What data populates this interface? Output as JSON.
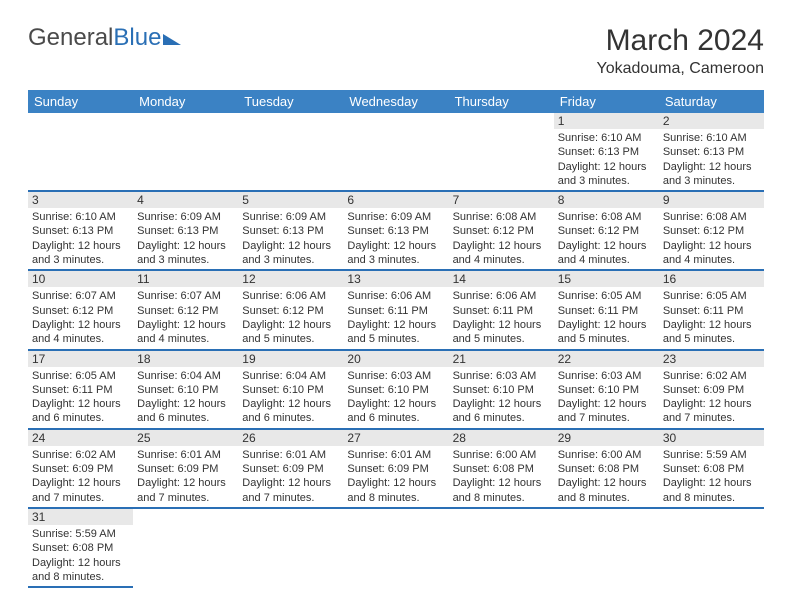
{
  "brand": {
    "part1": "General",
    "part2": "Blue"
  },
  "title": "March 2024",
  "subtitle": "Yokadouma, Cameroon",
  "colors": {
    "header_bg": "#3b82c4",
    "header_text": "#ffffff",
    "border": "#2a6fb5",
    "daynum_bg": "#e8e8e8",
    "text": "#333333",
    "logo_gray": "#4a4a4a",
    "logo_blue": "#2a6fb5"
  },
  "weekdays": [
    "Sunday",
    "Monday",
    "Tuesday",
    "Wednesday",
    "Thursday",
    "Friday",
    "Saturday"
  ],
  "weeks": [
    [
      {
        "n": "",
        "t": ""
      },
      {
        "n": "",
        "t": ""
      },
      {
        "n": "",
        "t": ""
      },
      {
        "n": "",
        "t": ""
      },
      {
        "n": "",
        "t": ""
      },
      {
        "n": "1",
        "t": "Sunrise: 6:10 AM\nSunset: 6:13 PM\nDaylight: 12 hours and 3 minutes."
      },
      {
        "n": "2",
        "t": "Sunrise: 6:10 AM\nSunset: 6:13 PM\nDaylight: 12 hours and 3 minutes."
      }
    ],
    [
      {
        "n": "3",
        "t": "Sunrise: 6:10 AM\nSunset: 6:13 PM\nDaylight: 12 hours and 3 minutes."
      },
      {
        "n": "4",
        "t": "Sunrise: 6:09 AM\nSunset: 6:13 PM\nDaylight: 12 hours and 3 minutes."
      },
      {
        "n": "5",
        "t": "Sunrise: 6:09 AM\nSunset: 6:13 PM\nDaylight: 12 hours and 3 minutes."
      },
      {
        "n": "6",
        "t": "Sunrise: 6:09 AM\nSunset: 6:13 PM\nDaylight: 12 hours and 3 minutes."
      },
      {
        "n": "7",
        "t": "Sunrise: 6:08 AM\nSunset: 6:12 PM\nDaylight: 12 hours and 4 minutes."
      },
      {
        "n": "8",
        "t": "Sunrise: 6:08 AM\nSunset: 6:12 PM\nDaylight: 12 hours and 4 minutes."
      },
      {
        "n": "9",
        "t": "Sunrise: 6:08 AM\nSunset: 6:12 PM\nDaylight: 12 hours and 4 minutes."
      }
    ],
    [
      {
        "n": "10",
        "t": "Sunrise: 6:07 AM\nSunset: 6:12 PM\nDaylight: 12 hours and 4 minutes."
      },
      {
        "n": "11",
        "t": "Sunrise: 6:07 AM\nSunset: 6:12 PM\nDaylight: 12 hours and 4 minutes."
      },
      {
        "n": "12",
        "t": "Sunrise: 6:06 AM\nSunset: 6:12 PM\nDaylight: 12 hours and 5 minutes."
      },
      {
        "n": "13",
        "t": "Sunrise: 6:06 AM\nSunset: 6:11 PM\nDaylight: 12 hours and 5 minutes."
      },
      {
        "n": "14",
        "t": "Sunrise: 6:06 AM\nSunset: 6:11 PM\nDaylight: 12 hours and 5 minutes."
      },
      {
        "n": "15",
        "t": "Sunrise: 6:05 AM\nSunset: 6:11 PM\nDaylight: 12 hours and 5 minutes."
      },
      {
        "n": "16",
        "t": "Sunrise: 6:05 AM\nSunset: 6:11 PM\nDaylight: 12 hours and 5 minutes."
      }
    ],
    [
      {
        "n": "17",
        "t": "Sunrise: 6:05 AM\nSunset: 6:11 PM\nDaylight: 12 hours and 6 minutes."
      },
      {
        "n": "18",
        "t": "Sunrise: 6:04 AM\nSunset: 6:10 PM\nDaylight: 12 hours and 6 minutes."
      },
      {
        "n": "19",
        "t": "Sunrise: 6:04 AM\nSunset: 6:10 PM\nDaylight: 12 hours and 6 minutes."
      },
      {
        "n": "20",
        "t": "Sunrise: 6:03 AM\nSunset: 6:10 PM\nDaylight: 12 hours and 6 minutes."
      },
      {
        "n": "21",
        "t": "Sunrise: 6:03 AM\nSunset: 6:10 PM\nDaylight: 12 hours and 6 minutes."
      },
      {
        "n": "22",
        "t": "Sunrise: 6:03 AM\nSunset: 6:10 PM\nDaylight: 12 hours and 7 minutes."
      },
      {
        "n": "23",
        "t": "Sunrise: 6:02 AM\nSunset: 6:09 PM\nDaylight: 12 hours and 7 minutes."
      }
    ],
    [
      {
        "n": "24",
        "t": "Sunrise: 6:02 AM\nSunset: 6:09 PM\nDaylight: 12 hours and 7 minutes."
      },
      {
        "n": "25",
        "t": "Sunrise: 6:01 AM\nSunset: 6:09 PM\nDaylight: 12 hours and 7 minutes."
      },
      {
        "n": "26",
        "t": "Sunrise: 6:01 AM\nSunset: 6:09 PM\nDaylight: 12 hours and 7 minutes."
      },
      {
        "n": "27",
        "t": "Sunrise: 6:01 AM\nSunset: 6:09 PM\nDaylight: 12 hours and 8 minutes."
      },
      {
        "n": "28",
        "t": "Sunrise: 6:00 AM\nSunset: 6:08 PM\nDaylight: 12 hours and 8 minutes."
      },
      {
        "n": "29",
        "t": "Sunrise: 6:00 AM\nSunset: 6:08 PM\nDaylight: 12 hours and 8 minutes."
      },
      {
        "n": "30",
        "t": "Sunrise: 5:59 AM\nSunset: 6:08 PM\nDaylight: 12 hours and 8 minutes."
      }
    ],
    [
      {
        "n": "31",
        "t": "Sunrise: 5:59 AM\nSunset: 6:08 PM\nDaylight: 12 hours and 8 minutes."
      },
      {
        "n": "",
        "t": ""
      },
      {
        "n": "",
        "t": ""
      },
      {
        "n": "",
        "t": ""
      },
      {
        "n": "",
        "t": ""
      },
      {
        "n": "",
        "t": ""
      },
      {
        "n": "",
        "t": ""
      }
    ]
  ]
}
